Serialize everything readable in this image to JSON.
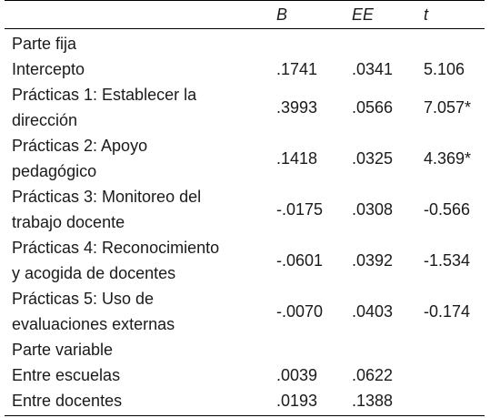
{
  "table": {
    "headers": [
      "B",
      "EE",
      "t"
    ],
    "rows": [
      {
        "label": "Parte fija",
        "b": "",
        "ee": "",
        "t": ""
      },
      {
        "label": "Intercepto",
        "b": ".1741",
        "ee": ".0341",
        "t": "5.106"
      },
      {
        "label_lines": [
          "Prácticas 1: Establecer la",
          "dirección"
        ],
        "b": ".3993",
        "ee": ".0566",
        "t": "7.057*"
      },
      {
        "label_lines": [
          "Prácticas 2: Apoyo",
          "pedagógico"
        ],
        "b": ".1418",
        "ee": ".0325",
        "t": "4.369*"
      },
      {
        "label_lines": [
          "Prácticas 3: Monitoreo del",
          "trabajo docente"
        ],
        "b": "-.0175",
        "ee": ".0308",
        "t": "-0.566"
      },
      {
        "label_lines": [
          "Prácticas 4: Reconocimiento",
          "y acogida de docentes"
        ],
        "b": "-.0601",
        "ee": ".0392",
        "t": "-1.534"
      },
      {
        "label_lines": [
          "Prácticas 5: Uso de",
          "evaluaciones externas"
        ],
        "b": "-.0070",
        "ee": ".0403",
        "t": "-0.174"
      },
      {
        "label": "Parte variable",
        "b": "",
        "ee": "",
        "t": ""
      },
      {
        "label": "Entre escuelas",
        "b": ".0039",
        "ee": ".0622",
        "t": ""
      },
      {
        "label": "Entre docentes",
        "b": ".0193",
        "ee": ".1388",
        "t": ""
      }
    ]
  }
}
